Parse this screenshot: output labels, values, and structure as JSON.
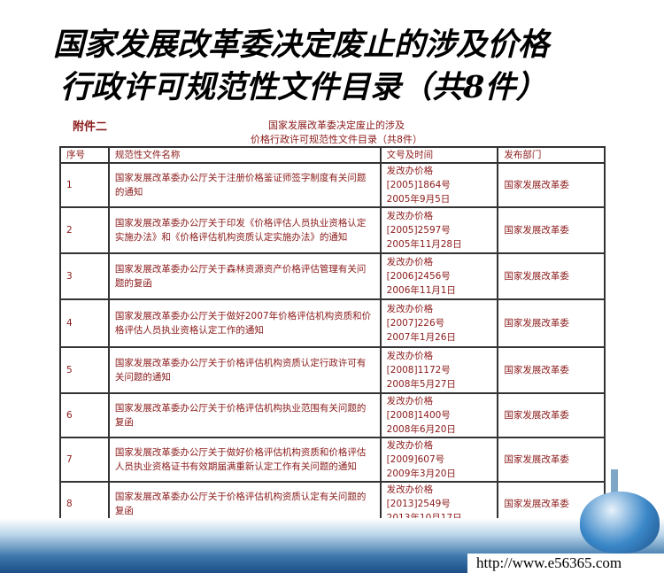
{
  "slide": {
    "title_line1": "国家发展改革委决定废止的涉及价格",
    "title_line2": "行政许可规范性文件目录（共8件）"
  },
  "document": {
    "attachment_label": "附件二",
    "subtitle_line1": "国家发展改革委决定废止的涉及",
    "subtitle_line2": "价格行政许可规范性文件目录（共8件）",
    "headers": [
      "序号",
      "规范性文件名称",
      "文号及时间",
      "发布部门"
    ],
    "rows": [
      {
        "no": "1",
        "name": "国家发展改革委办公厅关于注册价格鉴证师签字制度有关问题的通知",
        "doc": "发改办价格",
        "num": "[2005]1864号",
        "date": "2005年9月5日",
        "dept": "国家发展改革委"
      },
      {
        "no": "2",
        "name": "国家发展改革委办公厅关于印发《价格评估人员执业资格认定实施办法》和《价格评估机构资质认定实施办法》的通知",
        "doc": "发改办价格",
        "num": "[2005]2597号",
        "date": "2005年11月28日",
        "dept": "国家发展改革委"
      },
      {
        "no": "3",
        "name": "国家发展改革委办公厅关于森林资源资产价格评估管理有关问题的复函",
        "doc": "发改办价格",
        "num": "[2006]2456号",
        "date": "2006年11月1日",
        "dept": "国家发展改革委"
      },
      {
        "no": "4",
        "name": "国家发展改革委办公厅关于做好2007年价格评估机构资质和价格评估人员执业资格认定工作的通知",
        "doc": "发改办价格",
        "num": "[2007]226号",
        "date": "2007年1月26日",
        "dept": "国家发展改革委"
      },
      {
        "no": "5",
        "name": "国家发展改革委办公厅关于价格评估机构资质认定行政许可有关问题的通知",
        "doc": "发改办价格",
        "num": "[2008]1172号",
        "date": "2008年5月27日",
        "dept": "国家发展改革委"
      },
      {
        "no": "6",
        "name": "国家发展改革委办公厅关于价格评估机构执业范围有关问题的复函",
        "doc": "发改办价格",
        "num": "[2008]1400号",
        "date": "2008年6月20日",
        "dept": "国家发展改革委"
      },
      {
        "no": "7",
        "name": "国家发展改革委办公厅关于做好价格评估机构资质和价格评估人员执业资格证书有效期届满重新认定工作有关问题的通知",
        "doc": "发改办价格",
        "num": "[2009]607号",
        "date": "2009年3月20日",
        "dept": "国家发展改革委"
      },
      {
        "no": "8",
        "name": "国家发展改革委办公厅关于价格评估机构资质认定有关问题的复函",
        "doc": "发改办价格",
        "num": "[2013]2549号",
        "date": "2013年10月17日",
        "dept": "国家发展改革委"
      }
    ]
  },
  "footer": {
    "url": "http://www.e56365.com"
  },
  "colors": {
    "text": "#8b1a1a",
    "band": "#1d4f86"
  }
}
